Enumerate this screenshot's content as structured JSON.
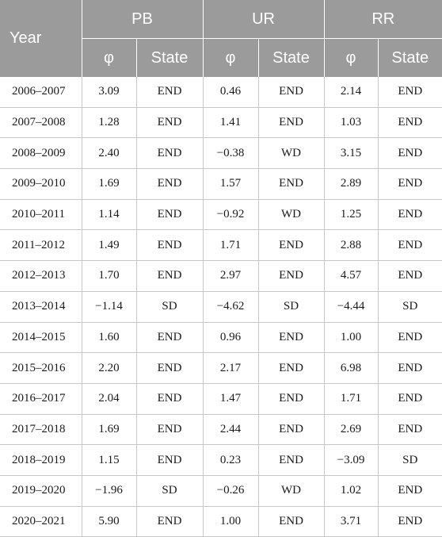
{
  "header": {
    "year": "Year",
    "groups": [
      "PB",
      "UR",
      "RR"
    ],
    "phi": "φ",
    "state": "State"
  },
  "rows": [
    {
      "year": "2006–2007",
      "pb_phi": "3.09",
      "pb_state": "END",
      "ur_phi": "0.46",
      "ur_state": "END",
      "rr_phi": "2.14",
      "rr_state": "END"
    },
    {
      "year": "2007–2008",
      "pb_phi": "1.28",
      "pb_state": "END",
      "ur_phi": "1.41",
      "ur_state": "END",
      "rr_phi": "1.03",
      "rr_state": "END"
    },
    {
      "year": "2008–2009",
      "pb_phi": "2.40",
      "pb_state": "END",
      "ur_phi": "−0.38",
      "ur_state": "WD",
      "rr_phi": "3.15",
      "rr_state": "END"
    },
    {
      "year": "2009–2010",
      "pb_phi": "1.69",
      "pb_state": "END",
      "ur_phi": "1.57",
      "ur_state": "END",
      "rr_phi": "2.89",
      "rr_state": "END"
    },
    {
      "year": "2010–2011",
      "pb_phi": "1.14",
      "pb_state": "END",
      "ur_phi": "−0.92",
      "ur_state": "WD",
      "rr_phi": "1.25",
      "rr_state": "END"
    },
    {
      "year": "2011–2012",
      "pb_phi": "1.49",
      "pb_state": "END",
      "ur_phi": "1.71",
      "ur_state": "END",
      "rr_phi": "2.88",
      "rr_state": "END"
    },
    {
      "year": "2012–2013",
      "pb_phi": "1.70",
      "pb_state": "END",
      "ur_phi": "2.97",
      "ur_state": "END",
      "rr_phi": "4.57",
      "rr_state": "END"
    },
    {
      "year": "2013–2014",
      "pb_phi": "−1.14",
      "pb_state": "SD",
      "ur_phi": "−4.62",
      "ur_state": "SD",
      "rr_phi": "−4.44",
      "rr_state": "SD"
    },
    {
      "year": "2014–2015",
      "pb_phi": "1.60",
      "pb_state": "END",
      "ur_phi": "0.96",
      "ur_state": "END",
      "rr_phi": "1.00",
      "rr_state": "END"
    },
    {
      "year": "2015–2016",
      "pb_phi": "2.20",
      "pb_state": "END",
      "ur_phi": "2.17",
      "ur_state": "END",
      "rr_phi": "6.98",
      "rr_state": "END"
    },
    {
      "year": "2016–2017",
      "pb_phi": "2.04",
      "pb_state": "END",
      "ur_phi": "1.47",
      "ur_state": "END",
      "rr_phi": "1.71",
      "rr_state": "END"
    },
    {
      "year": "2017–2018",
      "pb_phi": "1.69",
      "pb_state": "END",
      "ur_phi": "2.44",
      "ur_state": "END",
      "rr_phi": "2.69",
      "rr_state": "END"
    },
    {
      "year": "2018–2019",
      "pb_phi": "1.15",
      "pb_state": "END",
      "ur_phi": "0.23",
      "ur_state": "END",
      "rr_phi": "−3.09",
      "rr_state": "SD"
    },
    {
      "year": "2019–2020",
      "pb_phi": "−1.96",
      "pb_state": "SD",
      "ur_phi": "−0.26",
      "ur_state": "WD",
      "rr_phi": "1.02",
      "rr_state": "END"
    },
    {
      "year": "2020–2021",
      "pb_phi": "5.90",
      "pb_state": "END",
      "ur_phi": "1.00",
      "ur_state": "END",
      "rr_phi": "3.71",
      "rr_state": "END"
    }
  ]
}
